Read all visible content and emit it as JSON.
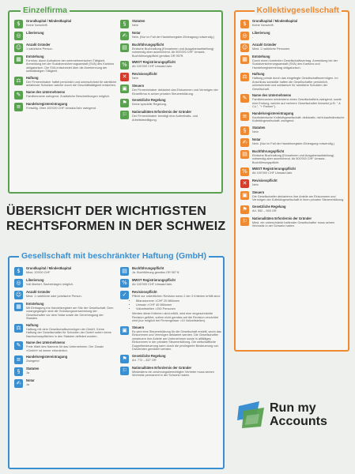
{
  "einzelfirma": {
    "title": "Einzelfirma",
    "left": [
      {
        "t": "Grundkapital / Mindestkapital",
        "d": "Keine Vorschrift."
      },
      {
        "t": "Liberierung",
        "d": "-"
      },
      {
        "t": "Anzahl Gründer",
        "d": "1 natürliche Person."
      },
      {
        "t": "Entstehung",
        "d": "Formlos: durch Aufnahme der unternehmerischen Tätigkeit. Anmeldung bei der Sozialversicherungsanstalt (SVA) des Kantons obligatorisch. Die SVA entscheidet über die Anerkennung der selbständigen Tätigkeit."
      },
      {
        "t": "Haftung",
        "d": "Der Firmeninhaber haftet persönlich und unbeschränkt für sämtliche anfallende Schulden welche durch die Geschäftstätigkeit entstehen."
      },
      {
        "t": "Name des Unternehmens",
        "d": "Familienname zwingend. Zusätzliche Beschreibungen möglich."
      },
      {
        "t": "Handelsregistereintragung",
        "d": "Freiwillig. Über 100'000 CHF Umsatz/Jahr zwingend."
      }
    ],
    "right": [
      {
        "t": "Statuten",
        "d": "Nein"
      },
      {
        "t": "Notar",
        "d": "Nein. (Nur im Fall der Handelsregister-Eintragung notwendig.)"
      },
      {
        "t": "Buchführungspflicht",
        "d": "Einfache Buchhaltung (Einnahmen und Ausgabenaufstellung) notwendig aber ausreichend. Ab 500'000 CHF Umsatz, Buchführungspflicht gemäss OR 957ff."
      },
      {
        "t": "MWST Registrierungspflicht",
        "d": "Ab 100'000 CHF Umsatz/Jahr."
      },
      {
        "t": "Revisionspflicht",
        "d": "Nein"
      },
      {
        "t": "Steuern",
        "d": "Der Firmeninhaber deklariert das Einkommen und Vermögen der Einzelfirma in seiner privaten Steuererklärung."
      },
      {
        "t": "Gesetzliche Regelung",
        "d": "Keine spezielle Regelung."
      },
      {
        "t": "Nationalitäten Erfordernis der Gründer",
        "d": "Der Firmeninhaber benötigt eine Aufenthalts- und Arbeitsbewilligung."
      }
    ]
  },
  "kollektiv": {
    "title": "Kollektivgesellschaft",
    "items": [
      {
        "t": "Grundkapital / Mindestkapital",
        "d": "Keine Vorschrift."
      },
      {
        "t": "Liberierung",
        "d": "-"
      },
      {
        "t": "Anzahl Gründer",
        "d": "Mind. 2 natürliche Personen."
      },
      {
        "t": "Entstehung",
        "d": "Durch einen formfreien Gesellschaftsvertrag. Anmeldung bei der Sozialversicherungsanstalt (SVA) des Kantons und Handelsregistereintrag obligatorisch."
      },
      {
        "t": "Haftung",
        "d": "Haftung primär durch das eingelegte Gesellschaftsvermögen. Im Anschluss subsidiär haften die Gesellschafter persönlich, unbeschränkt und solidarisch für sämtliche Schulden der Gesellschaft."
      },
      {
        "t": "Name des Unternehmens",
        "d": "Familiennamen mindestens eines Gesellschafters zwingend, sowie eine Endung, welche auf mehrere Gesellschafter hinweist (z.B. \" & Co.\", \"+ Partner\")."
      },
      {
        "t": "Handelsregistereintragung",
        "d": "Kaufmännische Kollektivgesellschaft: deklarativ, nicht-kaufmännische Kollektivgesellschaft: zwingend."
      },
      {
        "t": "Statuten",
        "d": "Nein"
      },
      {
        "t": "Notar",
        "d": "Nein. (Nur im Fall der Handelsregister-Eintragung notwendig.)"
      },
      {
        "t": "Buchführungspflicht",
        "d": "Einfache Buchhaltung (Einnahmen und Ausgabenaufstellung) notwendig aber ausreichend. Ab 500'000 CHF Umsatz, Buchführungspflicht."
      },
      {
        "t": "MWST Registrierungspflicht",
        "d": "Ab 100'000 CHF Umsatz/Jahr."
      },
      {
        "t": "Revisionspflicht",
        "d": "Nein"
      },
      {
        "t": "Steuern",
        "d": "Die Gesellschafter deklarieren ihre Anteile am Einkommen und Vermögen der Kollektivgesellschaft in ihren privaten Steuererklärung."
      },
      {
        "t": "Gesetzliche Regelung",
        "d": "Art. 552 – 593 OR"
      },
      {
        "t": "Nationalitäten Erfordernis der Gründer",
        "d": "Mind. ein unbeschränkt haftender Gesellschafter muss seinen Wohnsitz in der Schweiz haben."
      }
    ]
  },
  "headline": {
    "line1": "ÜBERSICHT DER WICHTIGSTEN",
    "line2": "RECHTSFORMEN IN DER SCHWEIZ"
  },
  "gmbh": {
    "title": "Gesellschaft mit beschränkter Haftung (GmbH)",
    "left": [
      {
        "t": "Grundkapital / Mindestkapital",
        "d": "Mind. 20'000 CHF"
      },
      {
        "t": "Liberierung",
        "d": "Voll liberiert, Sacheinlagen möglich."
      },
      {
        "t": "Anzahl Gründer",
        "d": "Mind. 1 natürliche oder juristische Person."
      },
      {
        "t": "Entstehung",
        "d": "Mit Eintragung ins Handelsregister am Sitz der Gesellschaft. Dem vorangegangen sind die Gründungsversammlung der Gesellschafter vor dem Notar sowie die Genehmigung der Statuten."
      },
      {
        "t": "Haftung",
        "d": "Haftung mit dem Gesellschaftsvermögen der GmbH. Keine Haftung der Gesellschafter für Schulden der GmbH sofern keine Nachschusspflichten in den Statuten definiert wurden."
      },
      {
        "t": "Name des Unternehmens",
        "d": "Freie Wahl des Namens für das Unternehmen. Der Zusatz «GmbH» ist immer erforderlich."
      },
      {
        "t": "Handelsregistereintragung",
        "d": "Zwingend"
      },
      {
        "t": "Statuten",
        "d": "Ja"
      },
      {
        "t": "Notar",
        "d": "Ja"
      }
    ],
    "right_top": [
      {
        "t": "Buchführungspflicht",
        "d": "Ja. Buchführung gemäss OR 957 ff."
      },
      {
        "t": "MWST Registrierungspflicht",
        "d": "Ab 100'000 CHF Umsatz/Jahr."
      }
    ],
    "revision": {
      "t": "Revisionspflicht",
      "d": "Pflicht zur ordentlichen Revision wenn 2 der 3 Kriterien erfüllt sind:",
      "bullets": [
        "Bilanzsumme >CHF 20 Millionen",
        "Umsatz >CHF 40 Millionen",
        "Vollzeitstellen >250 Personen"
      ],
      "d2": "Werden diese Kriterien nicht erfüllt, wird eine eingeschränkte Revision geführt, sofern nicht gemäss auf die Revision verzichtet wird (nur möglich bei Firmengrösse <10 Vollzeitstellen)."
    },
    "right_bottom": [
      {
        "t": "Steuern",
        "d": "Es wird eine Steuererklärung für die Gesellschaft erstellt, worin das Einkommen und Vermögen deklariert werden. Die Gesellschafter versteuern ihre Anteile am Unternehmen sowie in allfälliges Einkommen in der privaten Steuererklärung. Die wirtschaftliche Doppelbesteuerung kann durch die privilegierte Besteuerung von Dividenden gemildert werden."
      },
      {
        "t": "Gesetzliche Regelung",
        "d": "Art. 772 – 827 OR"
      },
      {
        "t": "Nationalitäten Erfordernis der Gründer",
        "d": "Mindestens ein zeichnungsberechtigter Vertreter muss seinen Wohnsitz permanent in der Schweiz haben."
      }
    ]
  },
  "logo": {
    "line1": "Run my",
    "line2": "Accounts"
  },
  "colors": {
    "green": "#59a04f",
    "orange": "#ef8a30",
    "blue": "#3a8fd0",
    "red": "#d53c2c"
  }
}
